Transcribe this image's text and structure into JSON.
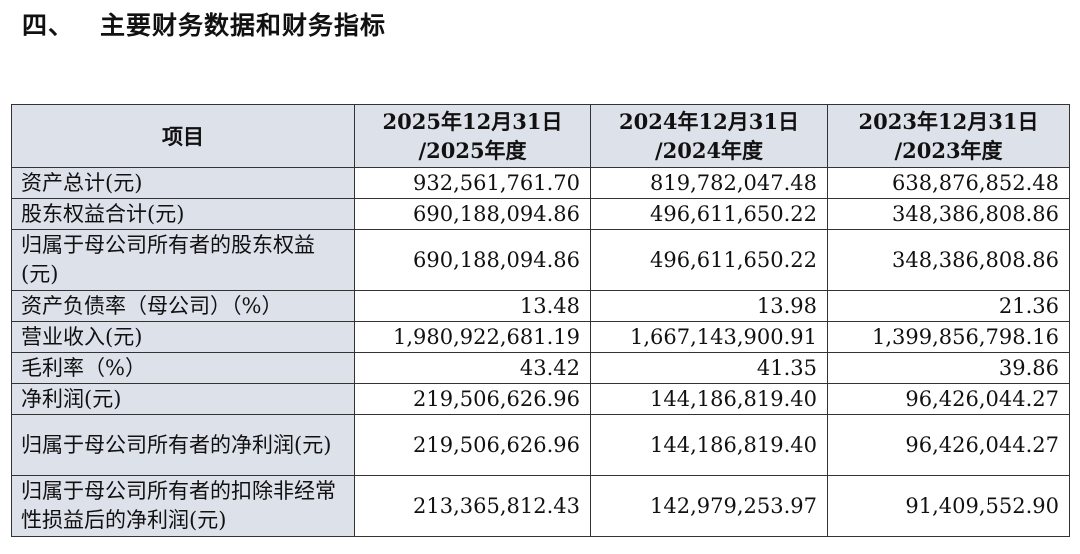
{
  "section": {
    "number": "四、",
    "title": "主要财务数据和财务指标"
  },
  "table": {
    "header": {
      "item": "项目",
      "cols": [
        {
          "line1": "2025年12月31日",
          "line2": "/2025年度"
        },
        {
          "line1": "2024年12月31日",
          "line2": "/2024年度"
        },
        {
          "line1": "2023年12月31日",
          "line2": "/2023年度"
        }
      ]
    },
    "rows": [
      {
        "label": "资产总计(元)",
        "values": [
          "932,561,761.70",
          "819,782,047.48",
          "638,876,852.48"
        ]
      },
      {
        "label": "股东权益合计(元)",
        "values": [
          "690,188,094.86",
          "496,611,650.22",
          "348,386,808.86"
        ]
      },
      {
        "label": "归属于母公司所有者的股东权益(元)",
        "values": [
          "690,188,094.86",
          "496,611,650.22",
          "348,386,808.86"
        ]
      },
      {
        "label": "资产负债率（母公司）（%）",
        "values": [
          "13.48",
          "13.98",
          "21.36"
        ]
      },
      {
        "label": "营业收入(元)",
        "values": [
          "1,980,922,681.19",
          "1,667,143,900.91",
          "1,399,856,798.16"
        ]
      },
      {
        "label": "毛利率（%）",
        "values": [
          "43.42",
          "41.35",
          "39.86"
        ]
      },
      {
        "label": "净利润(元)",
        "values": [
          "219,506,626.96",
          "144,186,819.40",
          "96,426,044.27"
        ]
      },
      {
        "label": "归属于母公司所有者的净利润(元)",
        "values": [
          "219,506,626.96",
          "144,186,819.40",
          "96,426,044.27"
        ]
      },
      {
        "label": "归属于母公司所有者的扣除非经常性损益后的净利润(元)",
        "values": [
          "213,365,812.43",
          "142,979,253.97",
          "91,409,552.90"
        ]
      }
    ]
  }
}
